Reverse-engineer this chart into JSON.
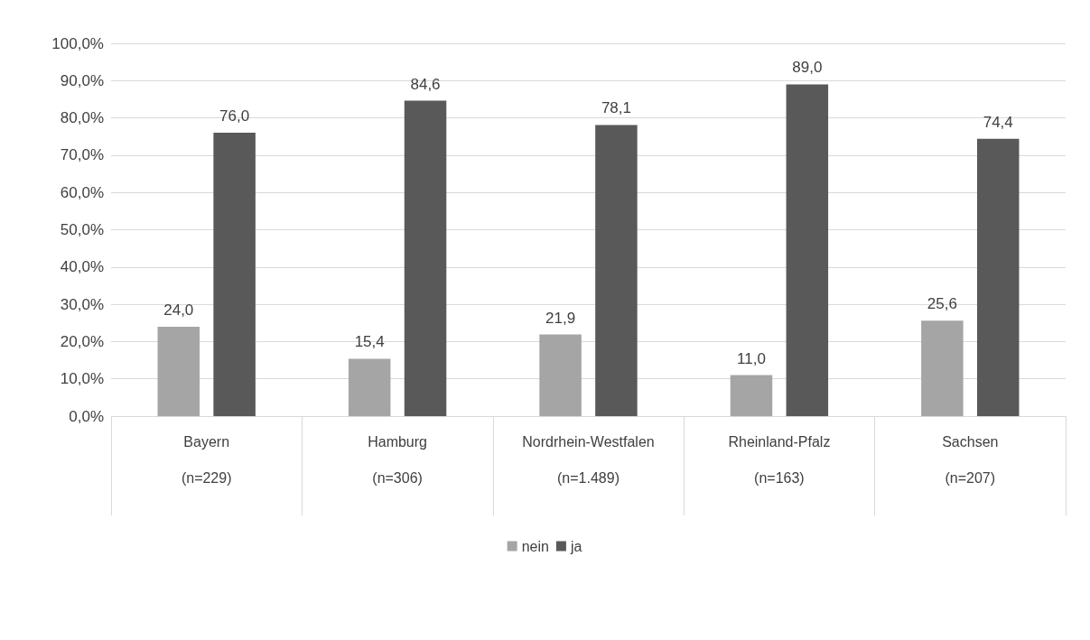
{
  "chart_data": {
    "type": "bar",
    "categories": [
      "Bayern\n\n(n=229)",
      "Hamburg\n\n(n=306)",
      "Nordrhein-Westfalen\n\n(n=1.489)",
      "Rheinland-Pfalz\n\n(n=163)",
      "Sachsen\n\n(n=207)"
    ],
    "series": [
      {
        "name": "nein",
        "color": "#a5a5a5",
        "values": [
          24.0,
          15.4,
          21.9,
          11.0,
          25.6
        ],
        "value_labels": [
          "24,0",
          "15,4",
          "21,9",
          "11,0",
          "25,6"
        ]
      },
      {
        "name": "ja",
        "color": "#595959",
        "values": [
          76.0,
          84.6,
          78.1,
          89.0,
          74.4
        ],
        "value_labels": [
          "76,0",
          "84,6",
          "78,1",
          "89,0",
          "74,4"
        ]
      }
    ],
    "ylim": [
      0,
      100
    ],
    "yticks": [
      {
        "value": 0,
        "label": "0,0%"
      },
      {
        "value": 10,
        "label": "10,0%"
      },
      {
        "value": 20,
        "label": "20,0%"
      },
      {
        "value": 30,
        "label": "30,0%"
      },
      {
        "value": 40,
        "label": "40,0%"
      },
      {
        "value": 50,
        "label": "50,0%"
      },
      {
        "value": 60,
        "label": "60,0%"
      },
      {
        "value": 70,
        "label": "70,0%"
      },
      {
        "value": 80,
        "label": "80,0%"
      },
      {
        "value": 90,
        "label": "90,0%"
      },
      {
        "value": 100,
        "label": "100,0%"
      }
    ],
    "grid": "y",
    "legend": "bottom"
  }
}
